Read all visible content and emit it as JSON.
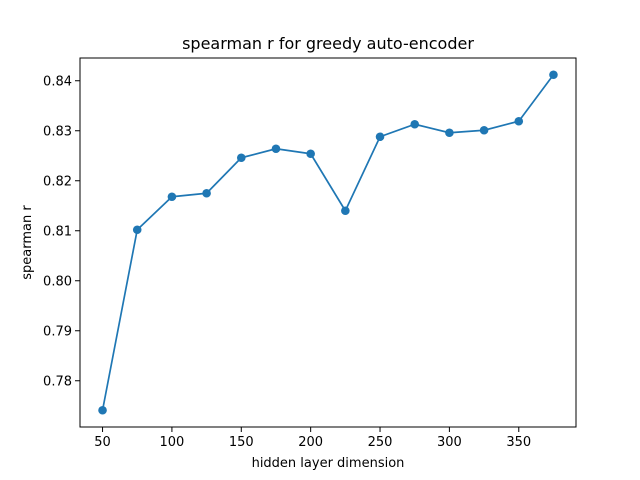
{
  "chart_data": {
    "type": "line",
    "title": "spearman r for greedy auto-encoder",
    "xlabel": "hidden layer dimension",
    "ylabel": "spearman r",
    "x": [
      50,
      75,
      100,
      125,
      150,
      175,
      200,
      225,
      250,
      275,
      300,
      325,
      350,
      375
    ],
    "series": [
      {
        "values": [
          0.7741,
          0.8102,
          0.8168,
          0.8175,
          0.8246,
          0.8264,
          0.8254,
          0.814,
          0.8288,
          0.8313,
          0.8296,
          0.8301,
          0.8319,
          0.8412
        ],
        "color": "#1f77b4",
        "marker": "circle"
      }
    ],
    "xticks": [
      "50",
      "100",
      "150",
      "200",
      "250",
      "300",
      "350"
    ],
    "xtick_values": [
      50,
      100,
      150,
      200,
      250,
      300,
      350
    ],
    "yticks": [
      "0.78",
      "0.79",
      "0.80",
      "0.81",
      "0.82",
      "0.83",
      "0.84"
    ],
    "ytick_values": [
      0.78,
      0.79,
      0.8,
      0.81,
      0.82,
      0.83,
      0.84
    ],
    "xlim": [
      33.75,
      391.25
    ],
    "ylim": [
      0.77075,
      0.84455
    ],
    "grid": false,
    "legend": "none"
  }
}
